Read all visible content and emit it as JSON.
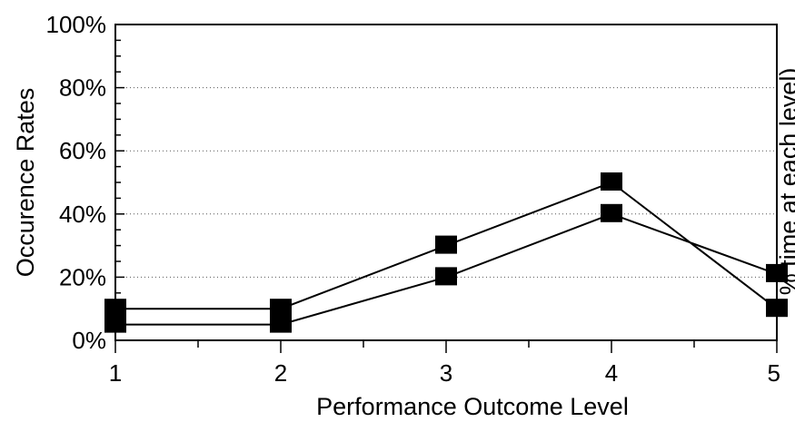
{
  "chart_data": {
    "type": "line",
    "title": "",
    "xlabel": "Performance Outcome Level",
    "ylabel": "Occurence Rates",
    "ylabel_right": "% time at each level)",
    "x": [
      1,
      2,
      3,
      4,
      5
    ],
    "x_tick_labels": [
      "1",
      "2",
      "3",
      "4",
      "5"
    ],
    "xlim": [
      1,
      5
    ],
    "ylim": [
      0,
      1
    ],
    "y_ticks": [
      0,
      0.2,
      0.4,
      0.6,
      0.8,
      1.0
    ],
    "y_tick_labels": [
      "0%",
      "20%",
      "40%",
      "60%",
      "80%",
      "100%"
    ],
    "grid": true,
    "legend": "none",
    "series": [
      {
        "values": [
          0.1,
          0.1,
          0.3,
          0.5,
          0.1
        ]
      },
      {
        "values": [
          0.05,
          0.05,
          0.2,
          0.4,
          0.21
        ]
      }
    ],
    "colors": {
      "line": "#000000",
      "marker": "#000000",
      "grid": "#555555"
    }
  }
}
